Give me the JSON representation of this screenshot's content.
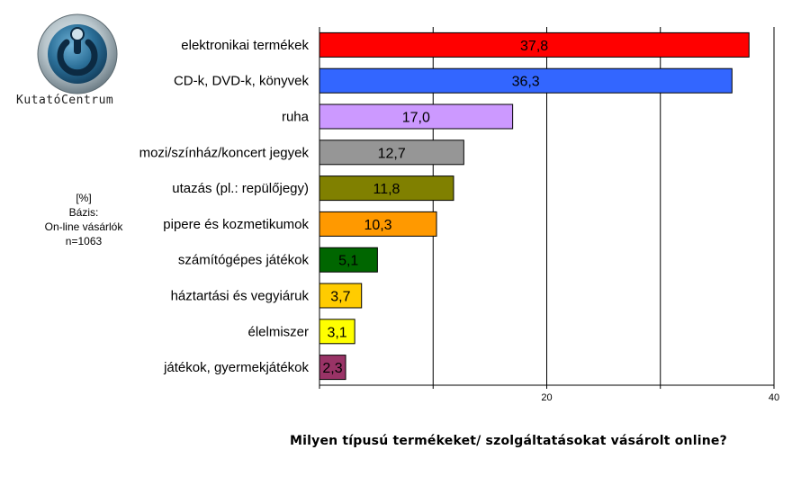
{
  "logo": {
    "text": "KutatóCentrum",
    "icon": "power-button-logo-icon"
  },
  "base_note": {
    "unit": "[%]",
    "basis_label": "Bázis:",
    "basis_group": "On-line vásárlók",
    "sample": "n=1063"
  },
  "question": "Milyen típusú termékeket/  szolgáltatásokat vásárolt online?",
  "chart_data": {
    "type": "bar",
    "orientation": "horizontal",
    "categories": [
      "elektronikai termékek",
      "CD-k, DVD-k, könyvek",
      "ruha",
      "mozi/színház/koncert jegyek",
      "utazás (pl.: repülőjegy)",
      "pipere és kozmetikumok",
      "számítógépes játékok",
      "háztartási és vegyiáruk",
      "élelmiszer",
      "játékok, gyermekjátékok"
    ],
    "values": [
      37.8,
      36.3,
      17.0,
      12.7,
      11.8,
      10.3,
      5.1,
      3.7,
      3.1,
      2.3
    ],
    "value_labels": [
      "37,8",
      "36,3",
      "17,0",
      "12,7",
      "11,8",
      "10,3",
      "5,1",
      "3,7",
      "3,1",
      "2,3"
    ],
    "colors": [
      "#ff0000",
      "#3366ff",
      "#cc99ff",
      "#969696",
      "#808000",
      "#ff9900",
      "#006600",
      "#ffcc00",
      "#ffff00",
      "#993366"
    ],
    "xlim": [
      0,
      40
    ],
    "x_ticks": [
      20,
      40
    ],
    "x_tick_labels": [
      "20",
      "40"
    ],
    "grid": "vertical",
    "title": "",
    "xlabel": "",
    "ylabel": ""
  }
}
